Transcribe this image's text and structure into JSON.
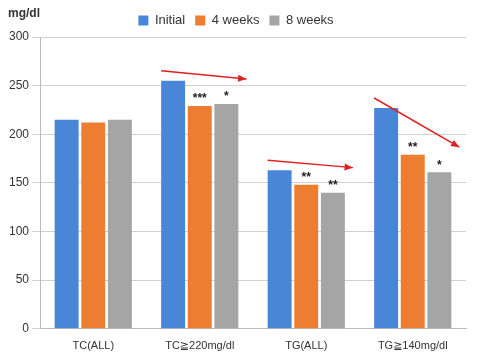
{
  "chart_data": {
    "type": "bar",
    "ylabel": "mg/dl",
    "categories": [
      "TC(ALL)",
      "TC≧220mg/dl",
      "TG(ALL)",
      "TG≧140mg/dl"
    ],
    "series": [
      {
        "name": "Initial",
        "color": "#4a86d8",
        "values": [
          215,
          255,
          163,
          227
        ]
      },
      {
        "name": "4 weeks",
        "color": "#ed7d31",
        "values": [
          212,
          229,
          148,
          179
        ]
      },
      {
        "name": "8 weeks",
        "color": "#a5a5a5",
        "values": [
          215,
          231,
          140,
          161
        ]
      }
    ],
    "ylim": [
      0,
      300
    ],
    "yticks": [
      0,
      50,
      100,
      150,
      200,
      250,
      300
    ],
    "grid": true,
    "legend": "top",
    "annotations": [
      {
        "series": "4 weeks",
        "category": "TC≧220mg/dl",
        "text": "***"
      },
      {
        "series": "8 weeks",
        "category": "TC≧220mg/dl",
        "text": "*"
      },
      {
        "series": "4 weeks",
        "category": "TG(ALL)",
        "text": "**"
      },
      {
        "series": "8 weeks",
        "category": "TG(ALL)",
        "text": "**"
      },
      {
        "series": "4 weeks",
        "category": "TG≧140mg/dl",
        "text": "**"
      },
      {
        "series": "8 weeks",
        "category": "TG≧140mg/dl",
        "text": "*"
      }
    ]
  }
}
